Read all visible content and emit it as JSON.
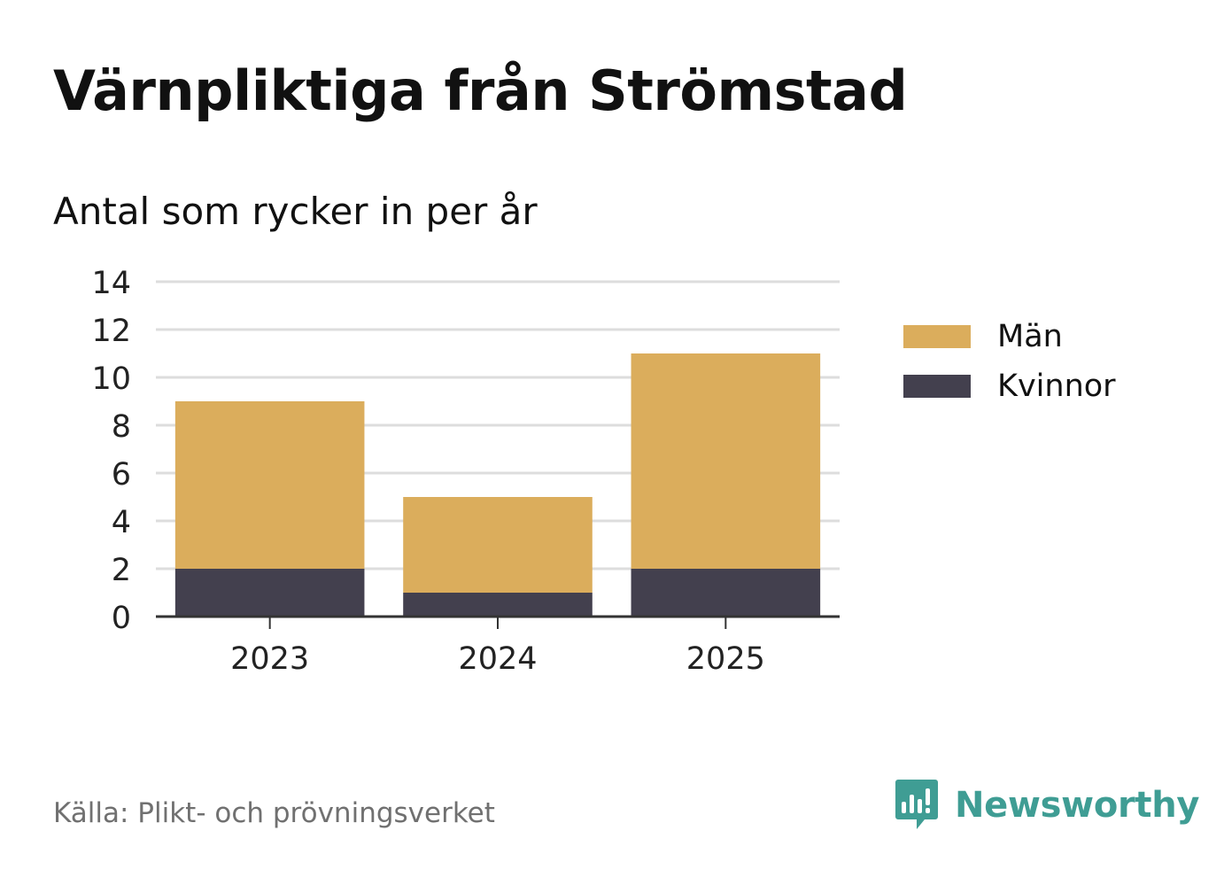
{
  "title": "Värnpliktiga från Strömstad",
  "subtitle": "Antal som rycker in per år",
  "source": "Källa: Plikt- och prövningsverket",
  "brand": {
    "name": "Newsworthy",
    "icon": "newsworthy-logo-icon",
    "color": "#3f9d94"
  },
  "colors": {
    "men": "#dbad5c",
    "women": "#43404e",
    "grid": "#dddddd",
    "axis": "#333333"
  },
  "chart_data": {
    "type": "bar",
    "stacked": true,
    "title": "Värnpliktiga från Strömstad",
    "subtitle": "Antal som rycker in per år",
    "xlabel": "",
    "ylabel": "",
    "categories": [
      "2023",
      "2024",
      "2025"
    ],
    "series": [
      {
        "name": "Kvinnor",
        "color": "#43404e",
        "values": [
          2,
          1,
          2
        ]
      },
      {
        "name": "Män",
        "color": "#dbad5c",
        "values": [
          7,
          4,
          9
        ]
      }
    ],
    "ylim": [
      0,
      14
    ],
    "yticks": [
      0,
      2,
      4,
      6,
      8,
      10,
      12,
      14
    ],
    "grid": true,
    "legend": [
      "Män",
      "Kvinnor"
    ],
    "legend_position": "right"
  }
}
